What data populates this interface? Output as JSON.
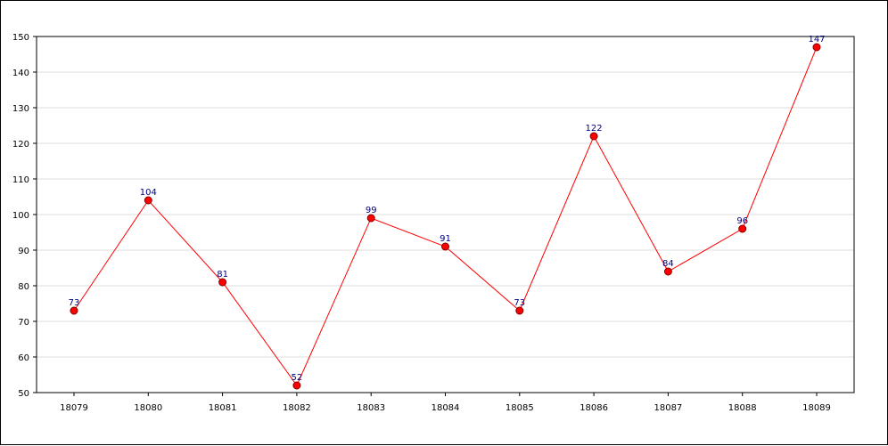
{
  "chart_data": {
    "type": "line",
    "categories": [
      "18079",
      "18080",
      "18081",
      "18082",
      "18083",
      "18084",
      "18085",
      "18086",
      "18087",
      "18088",
      "18089"
    ],
    "series": [
      {
        "values": [
          73,
          104,
          81,
          52,
          99,
          91,
          73,
          122,
          84,
          96,
          147
        ]
      }
    ],
    "y_ticks": [
      50,
      60,
      70,
      80,
      90,
      100,
      110,
      120,
      130,
      140,
      150
    ],
    "ylim": [
      50,
      150
    ],
    "title": "",
    "xlabel": "",
    "ylabel": "",
    "grid": "horizontal",
    "legend": "none",
    "colors": {
      "line": "#ff0000",
      "marker": "#ff0000",
      "marker_edge": "#800000",
      "data_label": "#000080",
      "grid": "#dddddd",
      "axis": "#000000"
    }
  }
}
